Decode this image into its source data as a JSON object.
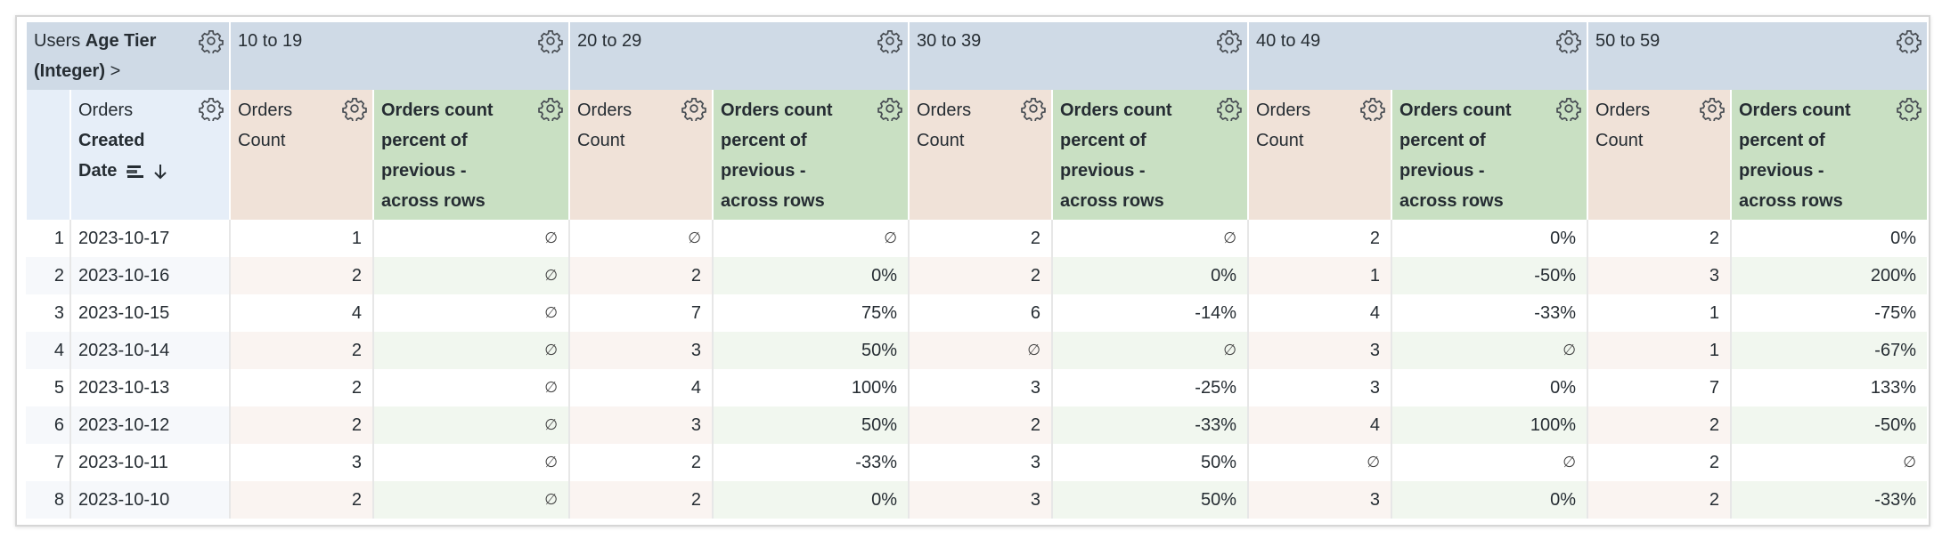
{
  "pivot_header": {
    "prefix": "Users",
    "field": "Age Tier",
    "type": "(Integer)",
    "chevron": ">"
  },
  "row_header": {
    "prefix": "Orders",
    "field_line1": "Created",
    "field_line2": "Date",
    "sort_icon": "arrow-down-icon"
  },
  "measure_labels": {
    "count": "Orders Count",
    "count_l1": "Orders",
    "count_l2": "Count",
    "pct_l1": "Orders count",
    "pct_l2": "percent of",
    "pct_l3": "previous -",
    "pct_l4": "across rows"
  },
  "pivots": [
    "10 to 19",
    "20 to 29",
    "30 to 39",
    "40 to 49",
    "50 to 59"
  ],
  "null_symbol": "∅",
  "rows": [
    {
      "n": "1",
      "date": "2023-10-17",
      "cells": [
        [
          "1",
          "∅"
        ],
        [
          "∅",
          "∅"
        ],
        [
          "2",
          "∅"
        ],
        [
          "2",
          "0%"
        ],
        [
          "2",
          "0%"
        ]
      ]
    },
    {
      "n": "2",
      "date": "2023-10-16",
      "cells": [
        [
          "2",
          "∅"
        ],
        [
          "2",
          "0%"
        ],
        [
          "2",
          "0%"
        ],
        [
          "1",
          "-50%"
        ],
        [
          "3",
          "200%"
        ]
      ]
    },
    {
      "n": "3",
      "date": "2023-10-15",
      "cells": [
        [
          "4",
          "∅"
        ],
        [
          "7",
          "75%"
        ],
        [
          "6",
          "-14%"
        ],
        [
          "4",
          "-33%"
        ],
        [
          "1",
          "-75%"
        ]
      ]
    },
    {
      "n": "4",
      "date": "2023-10-14",
      "cells": [
        [
          "2",
          "∅"
        ],
        [
          "3",
          "50%"
        ],
        [
          "∅",
          "∅"
        ],
        [
          "3",
          "∅"
        ],
        [
          "1",
          "-67%"
        ]
      ]
    },
    {
      "n": "5",
      "date": "2023-10-13",
      "cells": [
        [
          "2",
          "∅"
        ],
        [
          "4",
          "100%"
        ],
        [
          "3",
          "-25%"
        ],
        [
          "3",
          "0%"
        ],
        [
          "7",
          "133%"
        ]
      ]
    },
    {
      "n": "6",
      "date": "2023-10-12",
      "cells": [
        [
          "2",
          "∅"
        ],
        [
          "3",
          "50%"
        ],
        [
          "2",
          "-33%"
        ],
        [
          "4",
          "100%"
        ],
        [
          "2",
          "-50%"
        ]
      ]
    },
    {
      "n": "7",
      "date": "2023-10-11",
      "cells": [
        [
          "3",
          "∅"
        ],
        [
          "2",
          "-33%"
        ],
        [
          "3",
          "50%"
        ],
        [
          "∅",
          "∅"
        ],
        [
          "2",
          "∅"
        ]
      ]
    },
    {
      "n": "8",
      "date": "2023-10-10",
      "cells": [
        [
          "2",
          "∅"
        ],
        [
          "2",
          "0%"
        ],
        [
          "3",
          "50%"
        ],
        [
          "3",
          "0%"
        ],
        [
          "2",
          "-33%"
        ]
      ]
    }
  ],
  "colors": {
    "pivot_header": "#cfdae6",
    "dimension_header": "#e6eef8",
    "count_header": "#f0e2d8",
    "percent_header": "#c9e0c3"
  }
}
